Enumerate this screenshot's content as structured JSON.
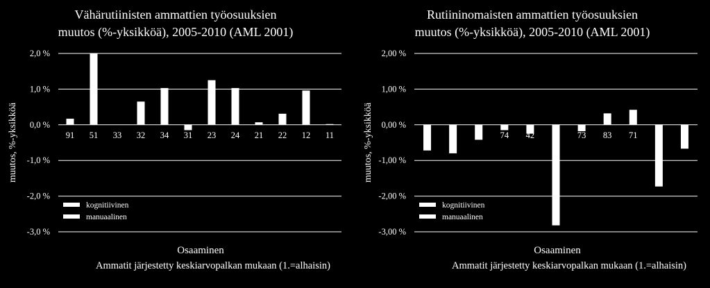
{
  "chart_data": [
    {
      "type": "bar",
      "title_lines": [
        "Vähärutiinisten ammattien työosuuksien",
        "muutos (%-yksikköä), 2005-2010 (AML 2001)"
      ],
      "ylabel": "muutos, %-yksikköä",
      "xlabel": "Osaaminen",
      "xsublabel": "Ammatit järjestetty keskiarvopalkan mukaan (1.=alhaisin)",
      "ylim": [
        -3.0,
        2.0
      ],
      "yticks": [
        2.0,
        1.0,
        0.0,
        -1.0,
        -2.0,
        -3.0
      ],
      "ytick_labels": [
        "2,0 %",
        "1,0 %",
        "0,0 %",
        "-1,0 %",
        "-2,0 %",
        "-3,0 %"
      ],
      "grid": true,
      "legend_position": "bottom-left",
      "categories": [
        "91",
        "51",
        "33",
        "32",
        "34",
        "31",
        "23",
        "24",
        "21",
        "22",
        "12",
        "11"
      ],
      "values": [
        0.17,
        2.0,
        0.0,
        0.65,
        1.03,
        -0.15,
        1.25,
        1.03,
        0.07,
        0.31,
        0.96,
        0.02
      ],
      "legend": [
        "kognitiivinen",
        "manuaalinen"
      ]
    },
    {
      "type": "bar",
      "title_lines": [
        "Rutiininomaisten ammattien työosuuksien",
        "muutos (%-yksikköä), 2005-2010 (AML 2001)"
      ],
      "ylabel": "muutos, %-yksikköä",
      "xlabel": "Osaaminen",
      "xsublabel": "Ammatit järjestetty keskiarvopalkan mukaan (1.=alhaisin)",
      "ylim": [
        -3.0,
        2.0
      ],
      "yticks": [
        2.0,
        1.0,
        0.0,
        -1.0,
        -2.0,
        -3.0
      ],
      "ytick_labels": [
        "2,00 %",
        "1,00 %",
        "0,00 %",
        "-1,00 %",
        "-2,00 %",
        "-3,00 %"
      ],
      "grid": true,
      "legend_position": "bottom-left",
      "categories": [
        "",
        "",
        "",
        "74",
        "42",
        "",
        "73",
        "83",
        "71",
        "",
        ""
      ],
      "values": [
        -0.72,
        -0.8,
        -0.42,
        -0.15,
        -0.25,
        -2.82,
        -0.18,
        0.32,
        0.42,
        -1.73,
        -0.67
      ],
      "legend": [
        "kognitiivinen",
        "manuaalinen"
      ]
    }
  ]
}
